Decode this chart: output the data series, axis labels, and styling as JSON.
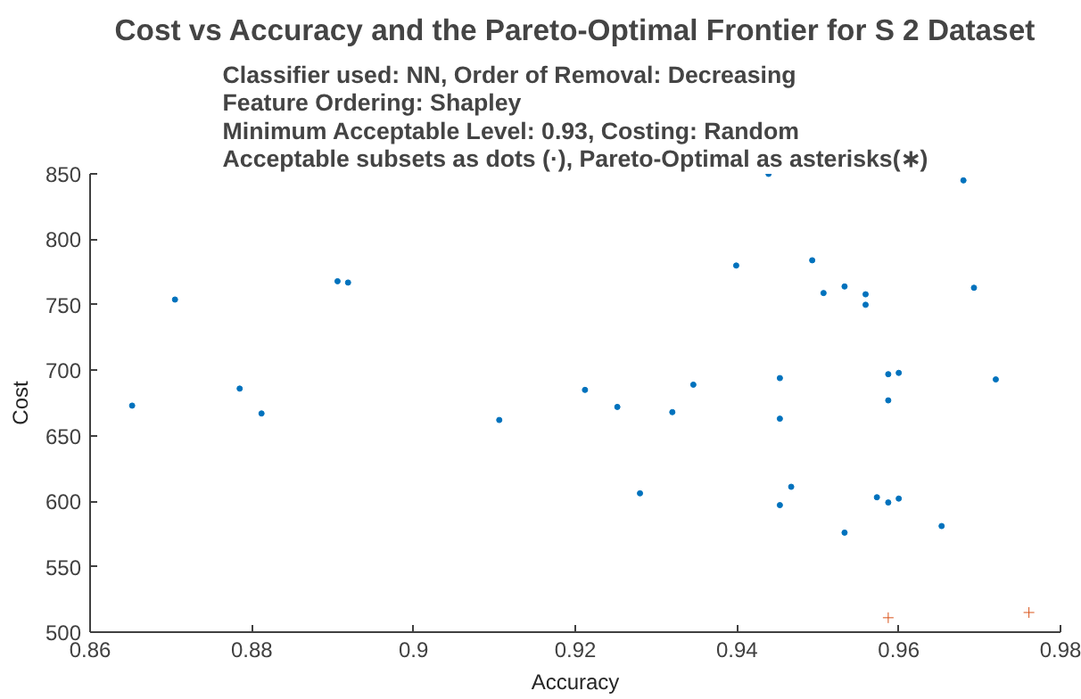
{
  "chart_data": {
    "type": "scatter",
    "title": "Cost vs Accuracy and the Pareto-Optimal Frontier for S 2 Dataset",
    "subtitle": "Classifier used:  NN, Order of Removal:  Decreasing\nFeature Ordering:  Shapley\nMinimum Acceptable Level:  0.93, Costing:  Random\nAcceptable subsets as dots (·), Pareto-Optimal as asterisks(∗)",
    "xlabel": "Accuracy",
    "ylabel": "Cost",
    "series": [
      {
        "color": "#0072bd",
        "marker": "circle",
        "x": [
          0.8652,
          0.8705,
          0.8785,
          0.8812,
          0.8906,
          0.8919,
          0.9106,
          0.9212,
          0.9252,
          0.932,
          0.9346,
          0.928,
          0.9399,
          0.9439,
          0.9453,
          0.9453,
          0.9453,
          0.9467,
          0.9493,
          0.9507,
          0.9533,
          0.9533,
          0.9559,
          0.9559,
          0.9573,
          0.9587,
          0.9587,
          0.9587,
          0.96,
          0.96,
          0.9653,
          0.968,
          0.9693,
          0.972
        ],
        "values": [
          673,
          754,
          686,
          667,
          768,
          767,
          662,
          685,
          672,
          668,
          689,
          606,
          780,
          850,
          694,
          663,
          597,
          611,
          784,
          759,
          764,
          576,
          758,
          750,
          603,
          697,
          677,
          599,
          698,
          602,
          581,
          845,
          763,
          693
        ]
      },
      {
        "color": "#d95319",
        "marker": "cross",
        "x": [
          0.9587,
          0.9761
        ],
        "values": [
          511,
          515
        ]
      }
    ],
    "xlim": [
      0.86,
      0.98
    ],
    "ylim": [
      500,
      850
    ],
    "xticks": [
      0.86,
      0.88,
      0.9,
      0.92,
      0.94,
      0.96,
      0.98
    ],
    "yticks": [
      500,
      550,
      600,
      650,
      700,
      750,
      800,
      850
    ],
    "grid": false
  }
}
